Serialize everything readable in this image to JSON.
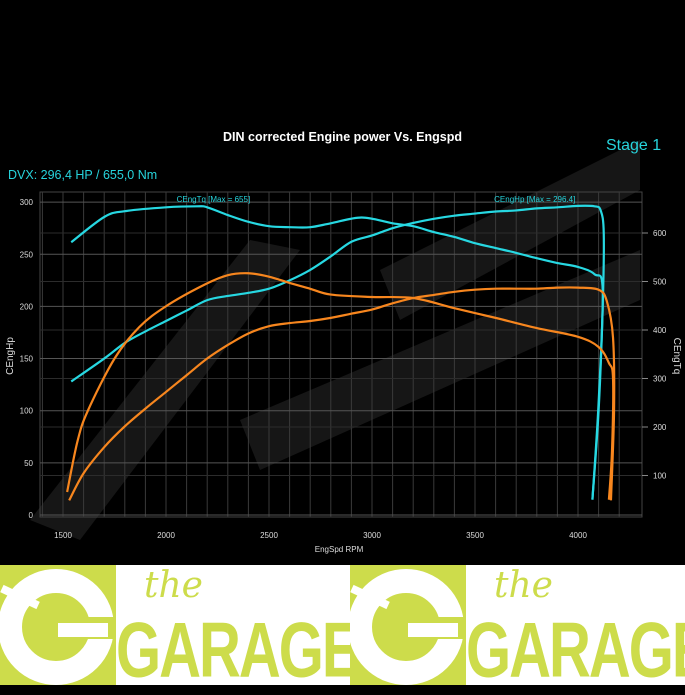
{
  "header": {
    "title": "DIN corrected Engine power Vs. Engspd",
    "stage": "Stage 1",
    "dvx": "DVX:  296,4 HP / 655,0 Nm"
  },
  "logo": {
    "the": "the",
    "garage": "GARAGE"
  },
  "colors": {
    "tuned": "#27d8e2",
    "stock": "#f7861e",
    "grid": "#3a3a3a",
    "logo": "#cddc4b"
  },
  "chart_data": {
    "type": "line",
    "title": "DIN corrected Engine power Vs. Engspd",
    "xlabel": "EngSpd RPM",
    "ylabel": "CEngHp",
    "y2label": "CEngTq",
    "xlim": [
      1380,
      4290
    ],
    "ylim": [
      0,
      310
    ],
    "y2lim": [
      0,
      690
    ],
    "xticks": [
      1500,
      2000,
      2500,
      3000,
      3500,
      4000
    ],
    "yticks": [
      0,
      50,
      100,
      150,
      200,
      250,
      300
    ],
    "y2ticks": [
      100,
      200,
      300,
      400,
      500,
      600
    ],
    "grid": true,
    "annotations": [
      {
        "text": "CEngTq [Max = 655]",
        "x": 2230,
        "y": 302
      },
      {
        "text": "CEngHp [Max = 296.4]",
        "x": 3790,
        "y": 302
      }
    ],
    "series": [
      {
        "name": "CEngHp",
        "axis": "left",
        "variant": "tuned",
        "x": [
          1540,
          1700,
          1800,
          1900,
          2000,
          2100,
          2200,
          2300,
          2400,
          2500,
          2600,
          2700,
          2800,
          2900,
          3000,
          3100,
          3200,
          3300,
          3400,
          3500,
          3600,
          3700,
          3800,
          3900,
          4000,
          4080,
          4110,
          4125,
          4120,
          4100,
          4070
        ],
        "y": [
          128,
          150,
          165,
          176,
          186,
          196,
          206,
          210,
          213,
          217,
          225,
          235,
          248,
          262,
          268,
          275,
          280,
          284,
          287,
          289,
          291,
          292,
          294,
          295,
          296.4,
          296,
          292,
          270,
          200,
          100,
          15
        ]
      },
      {
        "name": "CEngTq",
        "axis": "right",
        "variant": "tuned",
        "x": [
          1540,
          1700,
          1800,
          2000,
          2150,
          2200,
          2300,
          2400,
          2500,
          2600,
          2700,
          2800,
          2950,
          3100,
          3200,
          3300,
          3400,
          3500,
          3600,
          3700,
          3800,
          3900,
          4000,
          4080,
          4120,
          4100,
          4070
        ],
        "y": [
          581,
          633,
          645,
          653,
          655,
          653,
          637,
          623,
          614,
          612,
          612,
          620,
          632,
          620,
          614,
          602,
          592,
          579,
          569,
          559,
          548,
          538,
          530,
          515,
          482,
          250,
          50
        ]
      },
      {
        "name": "CEngHp",
        "axis": "left",
        "variant": "stock",
        "x": [
          1530,
          1600,
          1700,
          1800,
          1900,
          2000,
          2100,
          2200,
          2300,
          2400,
          2500,
          2600,
          2700,
          2800,
          2900,
          3000,
          3100,
          3200,
          3300,
          3400,
          3500,
          3600,
          3700,
          3800,
          3900,
          4000,
          4100,
          4140,
          4170,
          4175,
          4160
        ],
        "y": [
          14,
          40,
          65,
          85,
          102,
          118,
          134,
          150,
          163,
          174,
          181,
          184,
          186,
          189,
          193,
          197,
          203,
          208,
          211,
          214,
          216,
          217,
          217,
          217,
          218,
          218,
          216,
          205,
          170,
          100,
          14
        ]
      },
      {
        "name": "CEngTq",
        "axis": "right",
        "variant": "stock",
        "x": [
          1520,
          1570,
          1620,
          1750,
          1870,
          2000,
          2180,
          2300,
          2400,
          2500,
          2600,
          2700,
          2800,
          3000,
          3200,
          3400,
          3600,
          3800,
          4000,
          4100,
          4150,
          4170,
          4165,
          4150
        ],
        "y": [
          66,
          170,
          233,
          341,
          406,
          449,
          492,
          513,
          517,
          510,
          497,
          485,
          473,
          468,
          466,
          445,
          425,
          404,
          386,
          365,
          332,
          300,
          150,
          50
        ]
      }
    ]
  }
}
